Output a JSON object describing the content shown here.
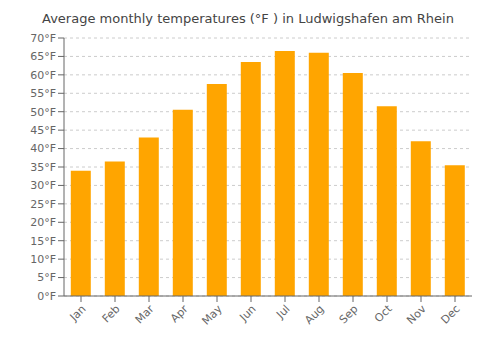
{
  "chart_data": {
    "type": "bar",
    "title": "Average monthly temperatures (°F ) in Ludwigshafen am Rhein",
    "categories": [
      "Jan",
      "Feb",
      "Mar",
      "Apr",
      "May",
      "Jun",
      "Jul",
      "Aug",
      "Sep",
      "Oct",
      "Nov",
      "Dec"
    ],
    "values": [
      34,
      36.5,
      43,
      50.5,
      57.5,
      63.5,
      66.5,
      66,
      60.5,
      51.5,
      42,
      35.5
    ],
    "color": "#FFA500",
    "ylim": [
      0,
      70
    ],
    "yticks": [
      {
        "value": 0,
        "label": "0°F"
      },
      {
        "value": 5,
        "label": "5°F"
      },
      {
        "value": 10,
        "label": "10°F"
      },
      {
        "value": 15,
        "label": "15°F"
      },
      {
        "value": 20,
        "label": "20°F"
      },
      {
        "value": 25,
        "label": "25°F"
      },
      {
        "value": 30,
        "label": "30°F"
      },
      {
        "value": 35,
        "label": "35°F"
      },
      {
        "value": 40,
        "label": "40°F"
      },
      {
        "value": 45,
        "label": "45°F"
      },
      {
        "value": 50,
        "label": "50°F"
      },
      {
        "value": 55,
        "label": "55°F"
      },
      {
        "value": 60,
        "label": "60°F"
      },
      {
        "value": 65,
        "label": "65°F"
      },
      {
        "value": 70,
        "label": "70°F"
      }
    ],
    "grid": true
  }
}
